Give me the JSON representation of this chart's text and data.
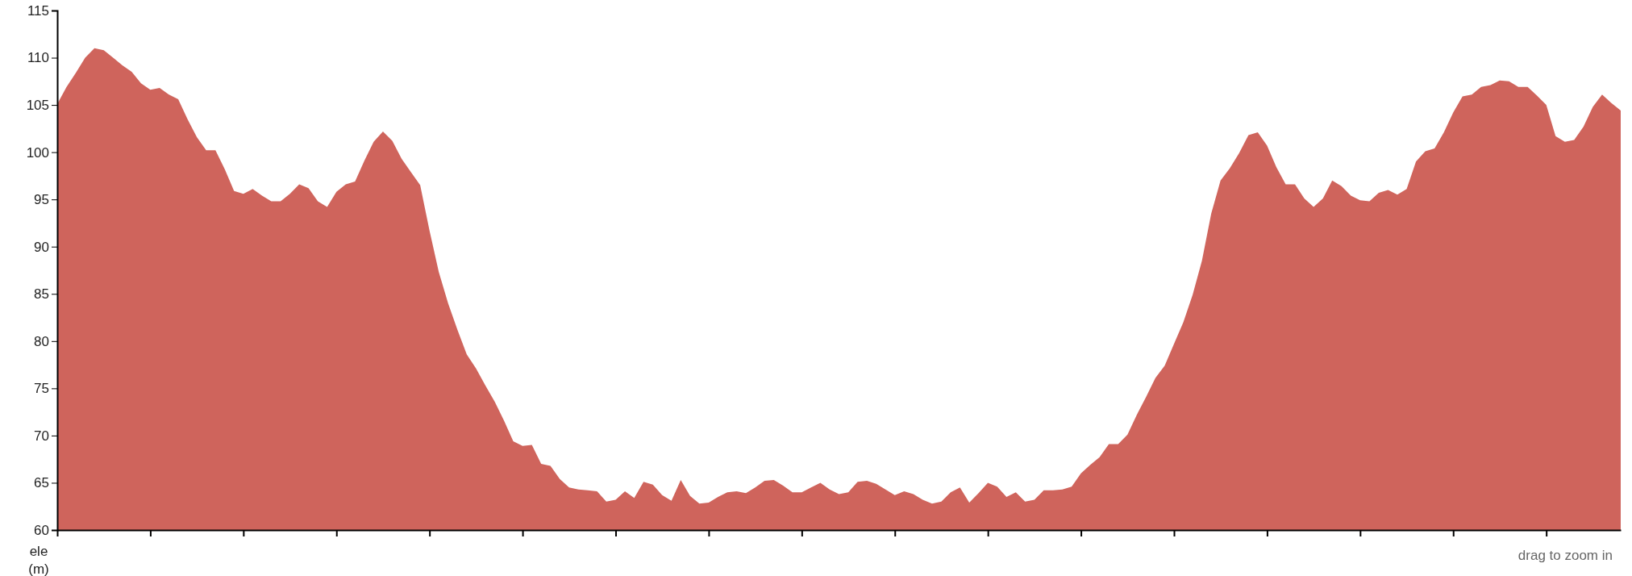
{
  "chart_data": {
    "type": "area",
    "ylabel": "ele (m)",
    "annotations": [
      "drag to zoom in"
    ],
    "color": "#cf645c",
    "ylim": [
      60,
      115
    ],
    "yticks": [
      60,
      65,
      70,
      75,
      80,
      85,
      90,
      95,
      100,
      105,
      110,
      115
    ],
    "grid": false,
    "categories": [
      null,
      null,
      null,
      null,
      null,
      null,
      null,
      null,
      null,
      null,
      null,
      null,
      null,
      null,
      null,
      null,
      null,
      null,
      null,
      null,
      null,
      null,
      null,
      null,
      null,
      null,
      null,
      null,
      null,
      null,
      null,
      null,
      null,
      null,
      null,
      null,
      null,
      null,
      null,
      null,
      null,
      null,
      null,
      null,
      null,
      null,
      null,
      null,
      null,
      null,
      null,
      null,
      null,
      null,
      null,
      null,
      null,
      null,
      null,
      null,
      null,
      null,
      null,
      null,
      null,
      null,
      null,
      null,
      null,
      null,
      null,
      null,
      null,
      null,
      null,
      null,
      null,
      null,
      null,
      null,
      null,
      null,
      null,
      null,
      null,
      null,
      null,
      null,
      null,
      null,
      null,
      null,
      null,
      null,
      null,
      null,
      null,
      null,
      null,
      null,
      null,
      null,
      null,
      null,
      null,
      null,
      null,
      null,
      null,
      null,
      null,
      null,
      null,
      null,
      null,
      null,
      null,
      null,
      null,
      null,
      null,
      null,
      null,
      null,
      null,
      null,
      null,
      null,
      null,
      null,
      null,
      null,
      null,
      null,
      null,
      null,
      null,
      null,
      null,
      null,
      null,
      null,
      null,
      null,
      null,
      null,
      null,
      null,
      null,
      null,
      null,
      null,
      null,
      null,
      null,
      null,
      null,
      null,
      null,
      null,
      null,
      null,
      null,
      null,
      null,
      null,
      null,
      null,
      null
    ],
    "values": [
      105.1,
      106.9,
      108.4,
      110.0,
      111.0,
      110.8,
      110.0,
      109.2,
      108.5,
      107.3,
      106.6,
      106.8,
      106.1,
      105.6,
      103.5,
      101.6,
      100.2,
      100.2,
      98.2,
      95.9,
      95.6,
      96.1,
      95.4,
      94.8,
      94.8,
      95.6,
      96.6,
      96.2,
      94.8,
      94.2,
      95.8,
      96.6,
      96.9,
      99.1,
      101.1,
      102.2,
      101.2,
      99.3,
      97.9,
      96.5,
      91.7,
      87.3,
      84.0,
      81.2,
      78.6,
      77.1,
      75.3,
      73.6,
      71.6,
      69.4,
      68.9,
      69.0,
      67.0,
      66.8,
      65.4,
      64.5,
      64.3,
      64.2,
      64.1,
      63.0,
      63.2,
      64.1,
      63.4,
      65.1,
      64.8,
      63.7,
      63.1,
      65.3,
      63.6,
      62.8,
      62.9,
      63.5,
      64.0,
      64.1,
      63.9,
      64.5,
      65.2,
      65.3,
      64.7,
      64.0,
      64.0,
      64.5,
      65.0,
      64.3,
      63.8,
      64.0,
      65.1,
      65.2,
      64.9,
      64.3,
      63.7,
      64.1,
      63.8,
      63.2,
      62.8,
      63.0,
      64.0,
      64.5,
      62.9,
      63.9,
      65.0,
      64.6,
      63.5,
      64.0,
      63.0,
      63.2,
      64.2,
      64.2,
      64.3,
      64.6,
      66.0,
      66.9,
      67.7,
      69.1,
      69.1,
      70.1,
      72.2,
      74.1,
      76.1,
      77.4,
      79.7,
      82.0,
      84.9,
      88.5,
      93.5,
      97.0,
      98.3,
      99.9,
      101.8,
      102.1,
      100.7,
      98.4,
      96.6,
      96.6,
      95.1,
      94.2,
      95.1,
      97.0,
      96.4,
      95.4,
      94.9,
      94.8,
      95.7,
      96.0,
      95.5,
      96.1,
      99.0,
      100.1,
      100.4,
      102.1,
      104.2,
      105.9,
      106.1,
      106.9,
      107.1,
      107.6,
      107.5,
      106.9,
      106.9,
      106.0,
      105.0,
      101.7,
      101.1,
      101.3,
      102.7,
      104.8,
      106.1,
      105.2,
      104.4
    ]
  }
}
